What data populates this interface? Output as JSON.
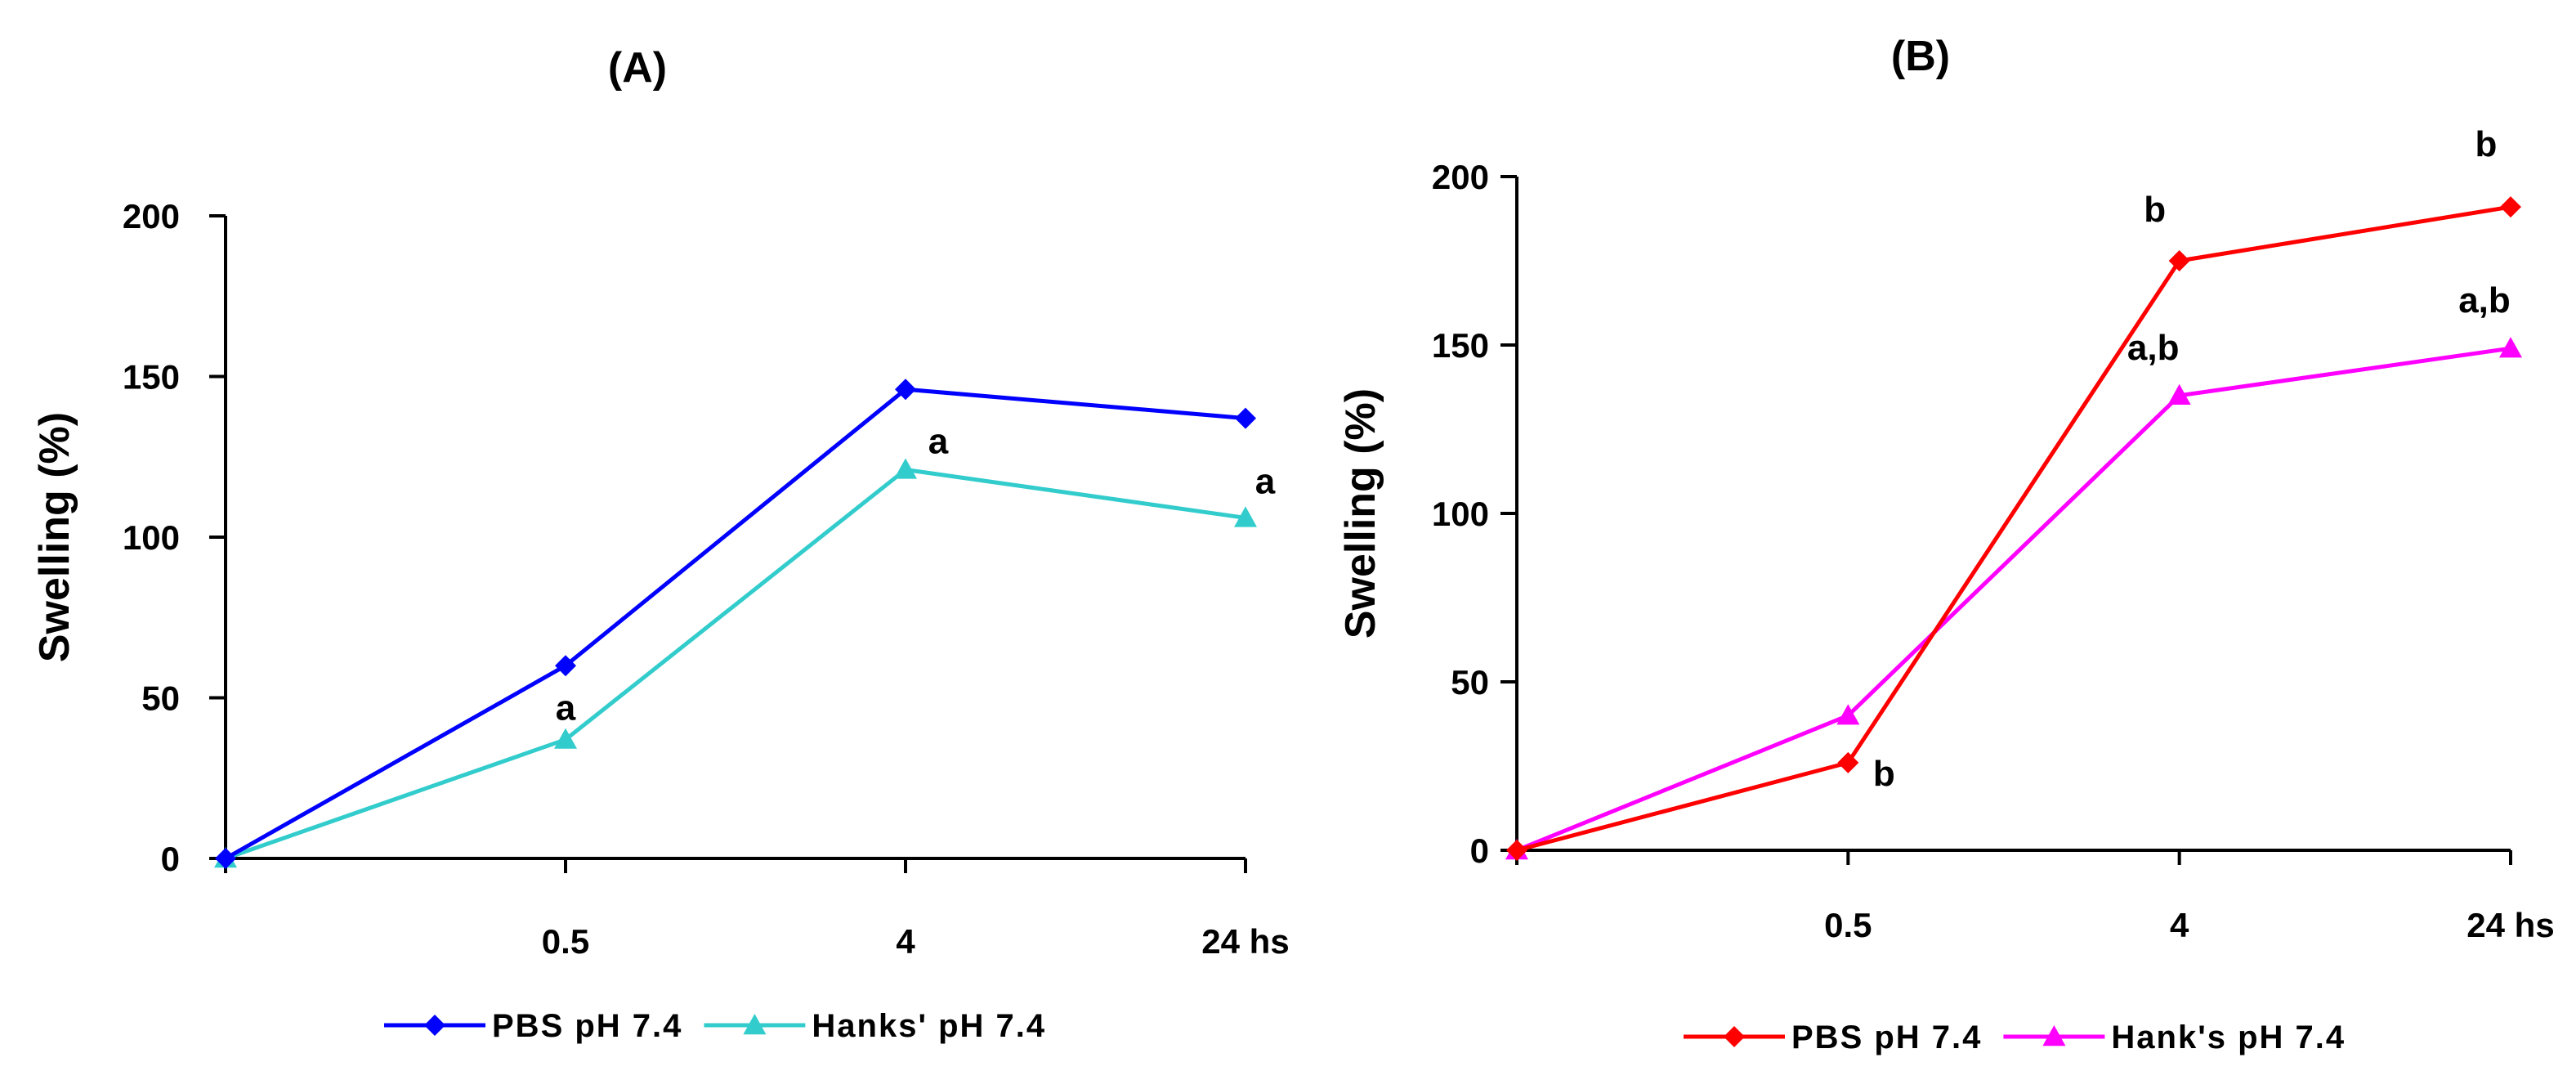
{
  "chart_data": [
    {
      "type": "line",
      "title": "(A)",
      "ylabel": "Swelling (%)",
      "xlabel": "",
      "categories": [
        "0",
        "0.5",
        "4",
        "24"
      ],
      "x_tick_labels": [
        "",
        "0.5",
        "4",
        "24 hs"
      ],
      "ylim": [
        0,
        200
      ],
      "yticks": [
        0,
        50,
        100,
        150,
        200
      ],
      "grid": false,
      "legend_position": "bottom",
      "series": [
        {
          "name": "PBS pH 7.4",
          "color": "#0000ff",
          "marker": "diamond",
          "values": [
            0,
            60,
            146,
            137
          ]
        },
        {
          "name": "Hanks' pH 7.4",
          "color": "#33cccc",
          "marker": "triangle",
          "values": [
            0,
            37,
            121,
            106
          ]
        }
      ],
      "annotations": [
        {
          "text": "a",
          "series": 1,
          "point": 1
        },
        {
          "text": "a",
          "series": 1,
          "point": 2
        },
        {
          "text": "a",
          "series": 1,
          "point": 3
        }
      ]
    },
    {
      "type": "line",
      "title": "(B)",
      "ylabel": "Swelling (%)",
      "xlabel": "",
      "categories": [
        "0",
        "0.5",
        "4",
        "24"
      ],
      "x_tick_labels": [
        "",
        "0.5",
        "4",
        "24 hs"
      ],
      "ylim": [
        0,
        200
      ],
      "yticks": [
        0,
        50,
        100,
        150,
        200
      ],
      "grid": false,
      "legend_position": "bottom",
      "series": [
        {
          "name": "PBS pH 7.4",
          "color": "#ff0000",
          "marker": "diamond",
          "values": [
            0,
            26,
            175,
            191
          ]
        },
        {
          "name": "Hank's pH 7.4",
          "color": "#ff00ff",
          "marker": "triangle",
          "values": [
            0,
            40,
            135,
            149
          ]
        }
      ],
      "annotations": [
        {
          "text": "b",
          "series": 0,
          "point": 1
        },
        {
          "text": "b",
          "series": 0,
          "point": 2
        },
        {
          "text": "b",
          "series": 0,
          "point": 3
        },
        {
          "text": "a,b",
          "series": 1,
          "point": 2
        },
        {
          "text": "a,b",
          "series": 1,
          "point": 3
        }
      ]
    }
  ]
}
